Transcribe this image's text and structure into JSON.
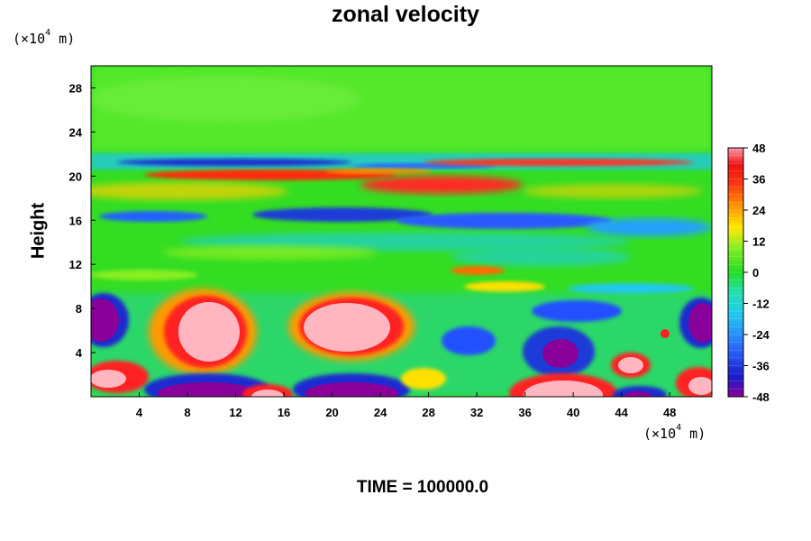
{
  "chart_data": {
    "type": "heatmap",
    "title": "zonal velocity",
    "ylabel": "Height",
    "xlabel": "",
    "x_unit": {
      "prefix": "(×10",
      "exp": "4",
      "suffix": " m)"
    },
    "y_unit": {
      "prefix": "(×10",
      "exp": "4",
      "suffix": " m)"
    },
    "xlim": [
      0,
      51.5
    ],
    "ylim": [
      0,
      30
    ],
    "xticks": [
      "4",
      "8",
      "12",
      "16",
      "20",
      "24",
      "28",
      "32",
      "36",
      "40",
      "44",
      "48"
    ],
    "yticks": [
      "4",
      "8",
      "12",
      "16",
      "20",
      "24",
      "28"
    ],
    "colorbar": {
      "min": -48,
      "max": 48,
      "levels": 32,
      "tick_labels": [
        "48",
        "36",
        "24",
        "12",
        "0",
        "-12",
        "-24",
        "-36",
        "-48"
      ]
    },
    "colors": {
      "positive_max": "#ffb6c1",
      "strong_positive": "#ff2020",
      "neutral": "#22dd22",
      "negative": "#22b8ff",
      "strong_negative": "#1010c0",
      "negative_max": "#880099"
    },
    "footer": "TIME = 100000.0"
  }
}
